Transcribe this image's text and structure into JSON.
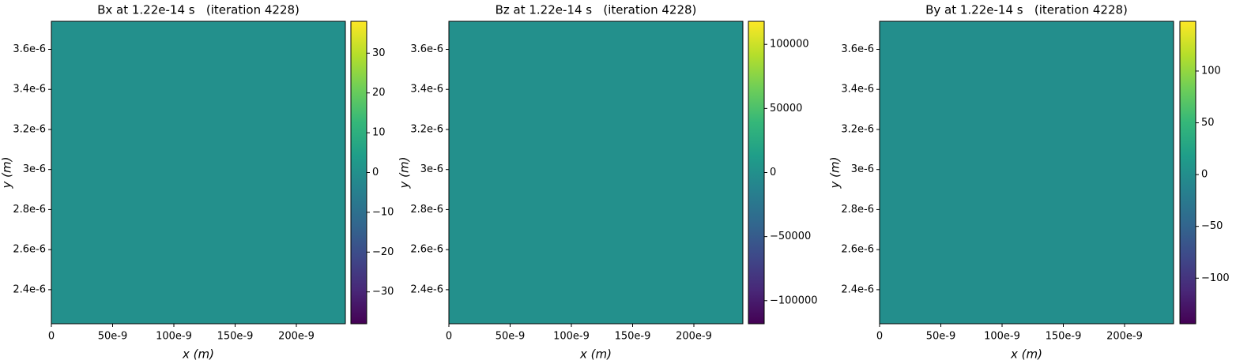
{
  "chart_data": [
    {
      "type": "heatmap",
      "title": "Bx at 1.22e-14 s   (iteration 4228)",
      "xlabel": "x (m)",
      "ylabel": "y (m)",
      "xlim": [
        0,
        2.4e-07
      ],
      "ylim": [
        2.23e-06,
        3.74e-06
      ],
      "xticks": [
        0,
        {
          "value": 5e-08,
          "label": "50e-9"
        },
        {
          "value": 1e-07,
          "label": "100e-9"
        },
        {
          "value": 1.5e-07,
          "label": "150e-9"
        },
        {
          "value": 2e-07,
          "label": "200e-9"
        }
      ],
      "yticks": [
        {
          "value": 2.4e-06,
          "label": "2.4e-6"
        },
        {
          "value": 2.6e-06,
          "label": "2.6e-6"
        },
        {
          "value": 2.8e-06,
          "label": "2.8e-6"
        },
        {
          "value": 3e-06,
          "label": "3e-6"
        },
        {
          "value": 3.2e-06,
          "label": "3.2e-6"
        },
        {
          "value": 3.4e-06,
          "label": "3.4e-6"
        },
        {
          "value": 3.6e-06,
          "label": "3.6e-6"
        }
      ],
      "clim": [
        -38,
        38
      ],
      "cticks": [
        {
          "value": -30,
          "label": "−30"
        },
        {
          "value": -20,
          "label": "−20"
        },
        {
          "value": -10,
          "label": "−10"
        },
        0,
        10,
        20,
        30
      ],
      "colormap": [
        "#440154",
        "#482878",
        "#3e4989",
        "#31688e",
        "#26828e",
        "#1f9e89",
        "#35b779",
        "#6ece58",
        "#b5de2b",
        "#fde725"
      ]
    },
    {
      "type": "heatmap",
      "title": "Bz at 1.22e-14 s   (iteration 4228)",
      "xlabel": "x (m)",
      "ylabel": "y (m)",
      "xlim": [
        0,
        2.4e-07
      ],
      "ylim": [
        2.23e-06,
        3.74e-06
      ],
      "xticks": [
        0,
        {
          "value": 5e-08,
          "label": "50e-9"
        },
        {
          "value": 1e-07,
          "label": "100e-9"
        },
        {
          "value": 1.5e-07,
          "label": "150e-9"
        },
        {
          "value": 2e-07,
          "label": "200e-9"
        }
      ],
      "yticks": [
        {
          "value": 2.4e-06,
          "label": "2.4e-6"
        },
        {
          "value": 2.6e-06,
          "label": "2.6e-6"
        },
        {
          "value": 2.8e-06,
          "label": "2.8e-6"
        },
        {
          "value": 3e-06,
          "label": "3e-6"
        },
        {
          "value": 3.2e-06,
          "label": "3.2e-6"
        },
        {
          "value": 3.4e-06,
          "label": "3.4e-6"
        },
        {
          "value": 3.6e-06,
          "label": "3.6e-6"
        }
      ],
      "clim": [
        -118000,
        118000
      ],
      "cticks": [
        {
          "value": -100000,
          "label": "−100000"
        },
        {
          "value": -50000,
          "label": "−50000"
        },
        0,
        50000,
        100000
      ],
      "colormap": [
        "#440154",
        "#482878",
        "#3e4989",
        "#31688e",
        "#26828e",
        "#1f9e89",
        "#35b779",
        "#6ece58",
        "#b5de2b",
        "#fde725"
      ]
    },
    {
      "type": "heatmap",
      "title": "By at 1.22e-14 s   (iteration 4228)",
      "xlabel": "x (m)",
      "ylabel": "y (m)",
      "xlim": [
        0,
        2.4e-07
      ],
      "ylim": [
        2.23e-06,
        3.74e-06
      ],
      "xticks": [
        0,
        {
          "value": 5e-08,
          "label": "50e-9"
        },
        {
          "value": 1e-07,
          "label": "100e-9"
        },
        {
          "value": 1.5e-07,
          "label": "150e-9"
        },
        {
          "value": 2e-07,
          "label": "200e-9"
        }
      ],
      "yticks": [
        {
          "value": 2.4e-06,
          "label": "2.4e-6"
        },
        {
          "value": 2.6e-06,
          "label": "2.6e-6"
        },
        {
          "value": 2.8e-06,
          "label": "2.8e-6"
        },
        {
          "value": 3e-06,
          "label": "3e-6"
        },
        {
          "value": 3.2e-06,
          "label": "3.2e-6"
        },
        {
          "value": 3.4e-06,
          "label": "3.4e-6"
        },
        {
          "value": 3.6e-06,
          "label": "3.6e-6"
        }
      ],
      "clim": [
        -144,
        148
      ],
      "cticks": [
        {
          "value": -100,
          "label": "−100"
        },
        {
          "value": -50,
          "label": "−50"
        },
        0,
        50,
        100
      ],
      "colormap": [
        "#440154",
        "#482878",
        "#3e4989",
        "#31688e",
        "#26828e",
        "#1f9e89",
        "#35b779",
        "#6ece58",
        "#b5de2b",
        "#fde725"
      ]
    }
  ]
}
